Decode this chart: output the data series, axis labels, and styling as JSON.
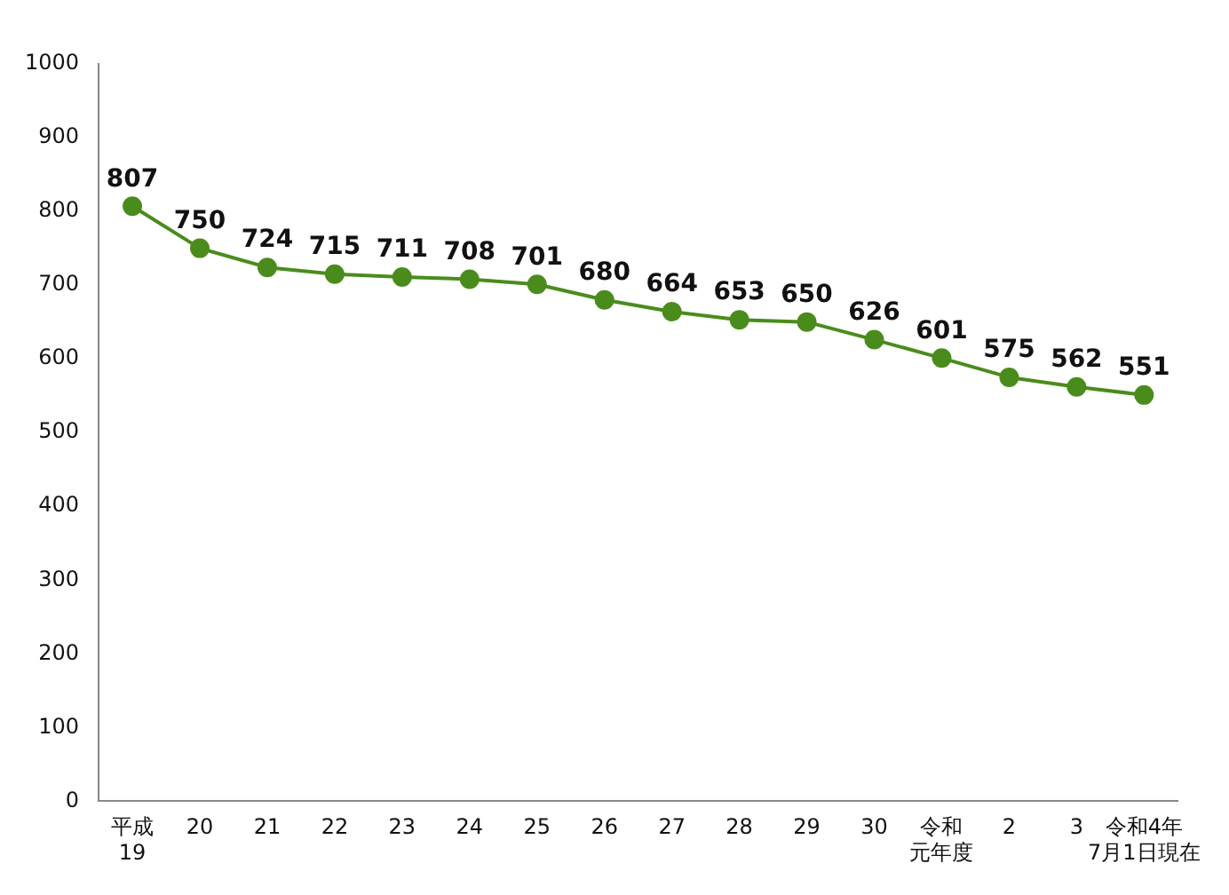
{
  "chart_data": {
    "type": "line",
    "categories": [
      "平成\n19",
      "20",
      "21",
      "22",
      "23",
      "24",
      "25",
      "26",
      "27",
      "28",
      "29",
      "30",
      "令和元年度",
      "2",
      "3",
      "令和4年\n7月1日現在"
    ],
    "series": [
      {
        "color": "#4a8c1c",
        "values": [
          807,
          750,
          724,
          715,
          711,
          708,
          701,
          680,
          664,
          653,
          650,
          626,
          601,
          575,
          562,
          551
        ]
      }
    ],
    "ylim": [
      0,
      1000
    ],
    "yticks": [
      0,
      100,
      200,
      300,
      400,
      500,
      600,
      700,
      800,
      900,
      {
        "value": 1000,
        "label": "1000"
      }
    ],
    "grid": false,
    "legend": false,
    "marker": "circle",
    "line_style": "solid",
    "data_labels": true
  }
}
